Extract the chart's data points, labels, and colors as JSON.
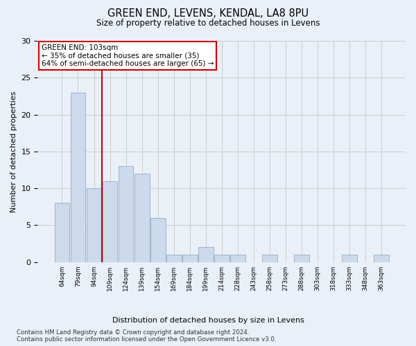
{
  "title": "GREEN END, LEVENS, KENDAL, LA8 8PU",
  "subtitle": "Size of property relative to detached houses in Levens",
  "xlabel": "Distribution of detached houses by size in Levens",
  "ylabel": "Number of detached properties",
  "categories": [
    "64sqm",
    "79sqm",
    "94sqm",
    "109sqm",
    "124sqm",
    "139sqm",
    "154sqm",
    "169sqm",
    "184sqm",
    "199sqm",
    "214sqm",
    "228sqm",
    "243sqm",
    "258sqm",
    "273sqm",
    "288sqm",
    "303sqm",
    "318sqm",
    "333sqm",
    "348sqm",
    "363sqm"
  ],
  "values": [
    8,
    23,
    10,
    11,
    13,
    12,
    6,
    1,
    1,
    2,
    1,
    1,
    0,
    1,
    0,
    1,
    0,
    0,
    1,
    0,
    1
  ],
  "bar_color": "#ccdaec",
  "bar_edge_color": "#9ab4cc",
  "vline_idx": 2,
  "vline_color": "#cc0000",
  "annotation_line1": "GREEN END: 103sqm",
  "annotation_line2": "← 35% of detached houses are smaller (35)",
  "annotation_line3": "64% of semi-detached houses are larger (65) →",
  "annotation_box_color": "#cc0000",
  "annotation_box_bg": "#ffffff",
  "ylim": [
    0,
    30
  ],
  "yticks": [
    0,
    5,
    10,
    15,
    20,
    25,
    30
  ],
  "grid_color": "#cccccc",
  "bg_color": "#eaf0f8",
  "footnote_line1": "Contains HM Land Registry data © Crown copyright and database right 2024.",
  "footnote_line2": "Contains public sector information licensed under the Open Government Licence v3.0."
}
